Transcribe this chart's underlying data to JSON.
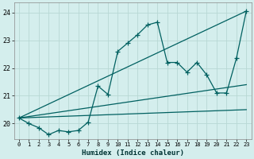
{
  "xlabel": "Humidex (Indice chaleur)",
  "bg_color": "#d4eeed",
  "grid_color": "#b8d8d4",
  "line_color": "#006060",
  "xlim": [
    -0.5,
    23.5
  ],
  "ylim": [
    19.45,
    24.35
  ],
  "yticks": [
    20,
    21,
    22,
    23,
    24
  ],
  "xtick_labels": [
    "0",
    "1",
    "2",
    "3",
    "4",
    "5",
    "6",
    "7",
    "8",
    "9",
    "10",
    "11",
    "12",
    "13",
    "14",
    "15",
    "16",
    "17",
    "18",
    "19",
    "20",
    "21",
    "22",
    "23"
  ],
  "series": [
    [
      0,
      20.2
    ],
    [
      1,
      20.0
    ],
    [
      2,
      19.85
    ],
    [
      3,
      19.6
    ],
    [
      4,
      19.75
    ],
    [
      5,
      19.7
    ],
    [
      6,
      19.75
    ],
    [
      7,
      20.05
    ],
    [
      8,
      21.35
    ],
    [
      9,
      21.05
    ],
    [
      10,
      22.6
    ],
    [
      11,
      22.9
    ],
    [
      12,
      23.2
    ],
    [
      13,
      23.55
    ],
    [
      14,
      23.65
    ],
    [
      15,
      22.2
    ],
    [
      16,
      22.2
    ],
    [
      17,
      21.85
    ],
    [
      18,
      22.2
    ],
    [
      19,
      21.75
    ],
    [
      20,
      21.1
    ],
    [
      21,
      21.1
    ],
    [
      22,
      22.35
    ],
    [
      23,
      24.05
    ]
  ],
  "trend_lines": [
    [
      [
        0,
        20.2
      ],
      [
        23,
        24.05
      ]
    ],
    [
      [
        0,
        20.2
      ],
      [
        23,
        21.4
      ]
    ],
    [
      [
        0,
        20.2
      ],
      [
        23,
        20.5
      ]
    ]
  ]
}
